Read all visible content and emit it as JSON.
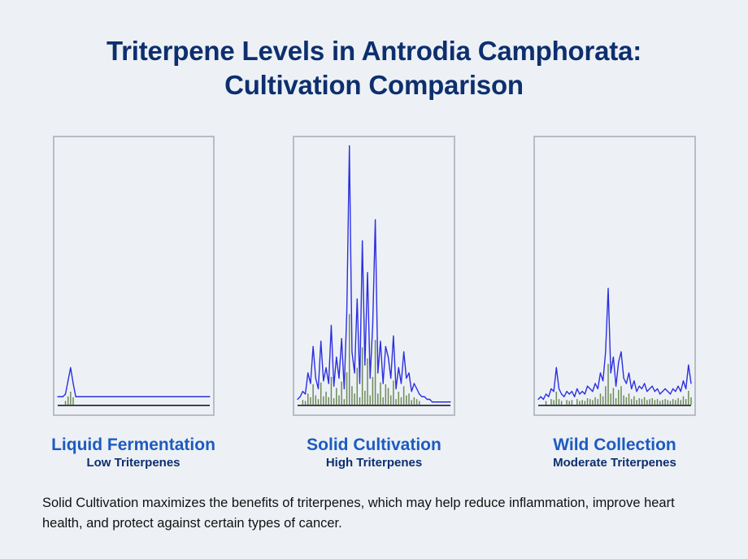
{
  "title": {
    "line1": "Triterpene Levels in Antrodia Camphorata:",
    "line2": "Cultivation Comparison"
  },
  "chart_data": [
    {
      "type": "line",
      "name": "Liquid Fermentation",
      "subtitle": "Low Triterpenes",
      "relative_level": "low",
      "x": [
        0,
        1,
        2,
        3,
        4,
        5,
        6,
        7,
        8,
        9,
        10,
        11,
        12,
        13,
        14,
        15,
        16,
        17,
        18,
        19,
        20,
        21,
        22,
        23,
        24,
        25,
        26,
        27,
        28,
        29,
        30,
        31,
        32,
        33,
        34,
        35,
        36,
        37,
        38,
        39,
        40,
        41,
        42,
        43,
        44,
        45,
        46,
        47,
        48,
        49,
        50,
        51,
        52,
        53,
        54,
        55,
        56,
        57,
        58,
        59
      ],
      "y": [
        3,
        3,
        3,
        4,
        9,
        14,
        8,
        3,
        3,
        3,
        3,
        3,
        3,
        3,
        3,
        3,
        3,
        3,
        3,
        3,
        3,
        3,
        3,
        3,
        3,
        3,
        3,
        3,
        3,
        3,
        3,
        3,
        3,
        3,
        3,
        3,
        3,
        3,
        3,
        3,
        3,
        3,
        3,
        3,
        3,
        3,
        3,
        3,
        3,
        3,
        3,
        3,
        3,
        3,
        3,
        3,
        3,
        3,
        3,
        3
      ],
      "ylim": [
        0,
        100
      ]
    },
    {
      "type": "line",
      "name": "Solid Cultivation",
      "subtitle": "High Triterpenes",
      "relative_level": "high",
      "x": [
        0,
        1,
        2,
        3,
        4,
        5,
        6,
        7,
        8,
        9,
        10,
        11,
        12,
        13,
        14,
        15,
        16,
        17,
        18,
        19,
        20,
        21,
        22,
        23,
        24,
        25,
        26,
        27,
        28,
        29,
        30,
        31,
        32,
        33,
        34,
        35,
        36,
        37,
        38,
        39,
        40,
        41,
        42,
        43,
        44,
        45,
        46,
        47,
        48,
        49,
        50,
        51,
        52,
        53,
        54,
        55,
        56,
        57,
        58,
        59
      ],
      "y": [
        2,
        3,
        5,
        4,
        12,
        8,
        22,
        10,
        6,
        24,
        9,
        14,
        8,
        30,
        7,
        18,
        10,
        25,
        6,
        35,
        98,
        20,
        12,
        40,
        8,
        62,
        15,
        50,
        10,
        30,
        70,
        12,
        24,
        8,
        22,
        18,
        10,
        26,
        6,
        14,
        8,
        20,
        10,
        12,
        5,
        8,
        6,
        4,
        3,
        3,
        2,
        2,
        1,
        1,
        1,
        1,
        1,
        1,
        1,
        1
      ],
      "ylim": [
        0,
        100
      ]
    },
    {
      "type": "line",
      "name": "Wild Collection",
      "subtitle": "Moderate Triterpenes",
      "relative_level": "moderate",
      "x": [
        0,
        1,
        2,
        3,
        4,
        5,
        6,
        7,
        8,
        9,
        10,
        11,
        12,
        13,
        14,
        15,
        16,
        17,
        18,
        19,
        20,
        21,
        22,
        23,
        24,
        25,
        26,
        27,
        28,
        29,
        30,
        31,
        32,
        33,
        34,
        35,
        36,
        37,
        38,
        39,
        40,
        41,
        42,
        43,
        44,
        45,
        46,
        47,
        48,
        49,
        50,
        51,
        52,
        53,
        54,
        55,
        56,
        57,
        58,
        59
      ],
      "y": [
        2,
        3,
        2,
        4,
        3,
        6,
        5,
        14,
        6,
        4,
        3,
        5,
        4,
        5,
        3,
        6,
        4,
        5,
        4,
        7,
        6,
        5,
        8,
        6,
        12,
        9,
        20,
        44,
        12,
        18,
        7,
        16,
        20,
        10,
        8,
        12,
        6,
        9,
        5,
        7,
        6,
        8,
        5,
        6,
        7,
        5,
        6,
        4,
        5,
        6,
        5,
        4,
        6,
        5,
        7,
        5,
        9,
        6,
        15,
        8
      ],
      "ylim": [
        0,
        100
      ]
    }
  ],
  "colors": {
    "trace": "#2b2fe0",
    "baseline": "#0a0a14",
    "fill": "#6e8a5a",
    "title": "#0d2f6e",
    "label": "#1d5bc0"
  },
  "footer": {
    "text": "Solid Cultivation maximizes the benefits of triterpenes, which may help reduce inflammation, improve heart health, and protect against certain types of cancer."
  }
}
